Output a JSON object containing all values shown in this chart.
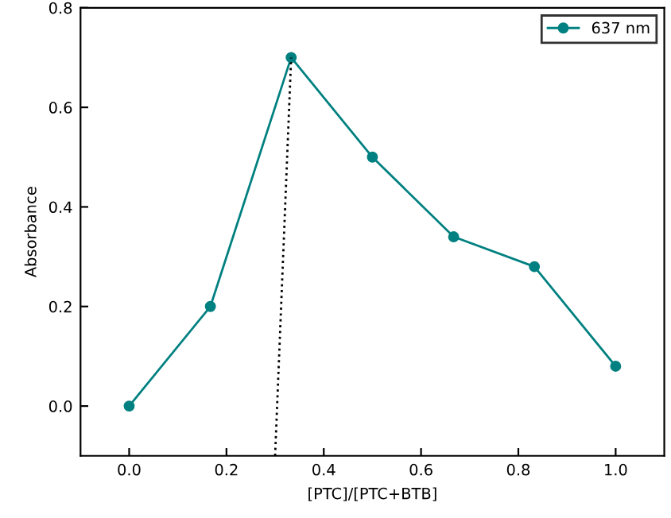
{
  "chart_data": {
    "type": "line",
    "xlabel": "[PTC]/[PTC+BTB]",
    "ylabel": "Absorbance",
    "xlim": [
      -0.1,
      1.1
    ],
    "ylim": [
      -0.1,
      0.8
    ],
    "xticks": [
      {
        "value": 0,
        "label": "0.0"
      },
      {
        "value": 0.2,
        "label": "0.2"
      },
      {
        "value": 0.4,
        "label": "0.4"
      },
      {
        "value": 0.6,
        "label": "0.6"
      },
      {
        "value": 0.8,
        "label": "0.8"
      },
      {
        "value": 1.0,
        "label": "1.0"
      }
    ],
    "yticks": [
      {
        "value": 0,
        "label": "0.0"
      },
      {
        "value": 0.2,
        "label": "0.2"
      },
      {
        "value": 0.4,
        "label": "0.4"
      },
      {
        "value": 0.6,
        "label": "0.6"
      },
      {
        "value": 0.8,
        "label": "0.8"
      }
    ],
    "series": [
      {
        "name": "637 nm",
        "color": "#008080",
        "x": [
          0,
          0.167,
          0.333,
          0.5,
          0.667,
          0.833,
          1.0
        ],
        "values": [
          0,
          0.2,
          0.7,
          0.5,
          0.34,
          0.28,
          0.08
        ],
        "marker": "circle",
        "line_style": "solid"
      },
      {
        "color": "#000000",
        "x": [
          0.3,
          0.333
        ],
        "values": [
          -0.1,
          0.7
        ],
        "marker": "none",
        "line_style": "dotted"
      }
    ],
    "legend": "top right",
    "grid": false
  }
}
